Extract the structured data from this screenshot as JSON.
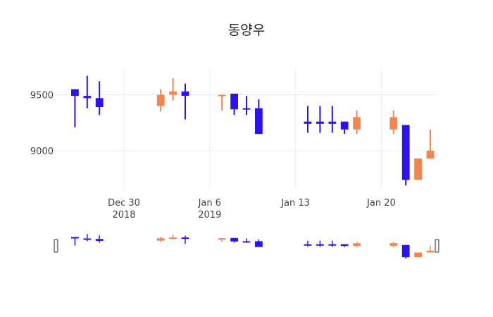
{
  "chart_data": {
    "type": "candlestick",
    "title": "동양우",
    "colors": {
      "increasing": "#f58550",
      "decreasing": "#2b12f2"
    },
    "x_ticks": [
      {
        "date": "2018-12-30",
        "label": [
          "Dec 30",
          "2018"
        ]
      },
      {
        "date": "2019-01-06",
        "label": [
          "Jan 6",
          "2019"
        ]
      },
      {
        "date": "2019-01-13",
        "label": [
          "Jan 13"
        ]
      },
      {
        "date": "2019-01-20",
        "label": [
          "Jan 20"
        ]
      }
    ],
    "y_ticks": [
      9000,
      9500
    ],
    "xlim": [
      "2018-12-25",
      "2019-01-24"
    ],
    "ylim": [
      8660,
      9730
    ],
    "grid": true,
    "rangeslider": true,
    "candles": [
      {
        "date": "2018-12-26",
        "open": 9550,
        "high": 9550,
        "low": 9210,
        "close": 9490
      },
      {
        "date": "2018-12-27",
        "open": 9490,
        "high": 9670,
        "low": 9380,
        "close": 9470
      },
      {
        "date": "2018-12-28",
        "open": 9470,
        "high": 9620,
        "low": 9320,
        "close": 9390
      },
      {
        "date": "2019-01-02",
        "open": 9400,
        "high": 9550,
        "low": 9350,
        "close": 9500
      },
      {
        "date": "2019-01-03",
        "open": 9500,
        "high": 9650,
        "low": 9450,
        "close": 9530
      },
      {
        "date": "2019-01-04",
        "open": 9530,
        "high": 9600,
        "low": 9280,
        "close": 9490
      },
      {
        "date": "2019-01-07",
        "open": 9490,
        "high": 9500,
        "low": 9360,
        "close": 9500
      },
      {
        "date": "2019-01-08",
        "open": 9510,
        "high": 9510,
        "low": 9320,
        "close": 9370
      },
      {
        "date": "2019-01-09",
        "open": 9380,
        "high": 9490,
        "low": 9320,
        "close": 9370
      },
      {
        "date": "2019-01-10",
        "open": 9380,
        "high": 9460,
        "low": 9150,
        "close": 9150
      },
      {
        "date": "2019-01-14",
        "open": 9260,
        "high": 9400,
        "low": 9160,
        "close": 9240
      },
      {
        "date": "2019-01-15",
        "open": 9260,
        "high": 9400,
        "low": 9160,
        "close": 9240
      },
      {
        "date": "2019-01-16",
        "open": 9260,
        "high": 9400,
        "low": 9160,
        "close": 9240
      },
      {
        "date": "2019-01-17",
        "open": 9260,
        "high": 9260,
        "low": 9150,
        "close": 9190
      },
      {
        "date": "2019-01-18",
        "open": 9190,
        "high": 9360,
        "low": 9150,
        "close": 9300
      },
      {
        "date": "2019-01-21",
        "open": 9190,
        "high": 9360,
        "low": 9150,
        "close": 9300
      },
      {
        "date": "2019-01-22",
        "open": 9230,
        "high": 9230,
        "low": 8690,
        "close": 8740
      },
      {
        "date": "2019-01-23",
        "open": 8740,
        "high": 8930,
        "low": 8740,
        "close": 8930
      },
      {
        "date": "2019-01-24",
        "open": 8930,
        "high": 9190,
        "low": 8930,
        "close": 9000
      }
    ]
  }
}
